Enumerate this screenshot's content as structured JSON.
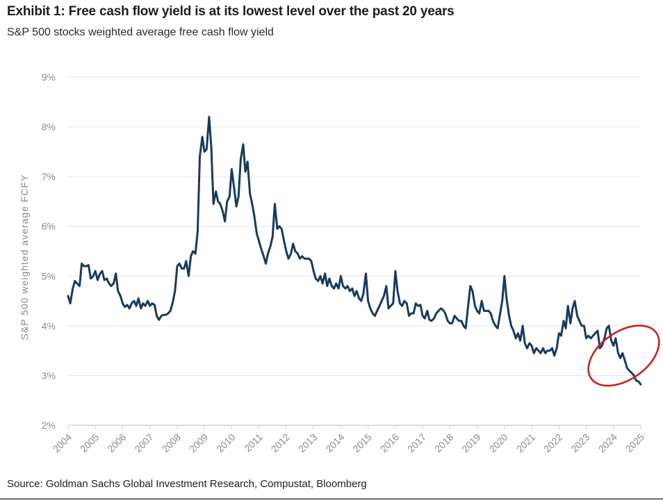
{
  "header": {
    "title": "Exhibit 1: Free cash flow yield is at its lowest level over the past 20 years",
    "subtitle": "S&P 500 stocks weighted average free cash flow yield"
  },
  "footer": {
    "source": "Source: Goldman Sachs Global Investment Research, Compustat, Bloomberg"
  },
  "chart_data": {
    "type": "line",
    "title": "Exhibit 1: Free cash flow yield is at its lowest level over the past 20 years",
    "subtitle": "S&P 500 stocks weighted average free cash flow yield",
    "xlabel": "",
    "ylabel": "S&P 500 weighted average FCFY",
    "xlim": [
      2004,
      2025
    ],
    "ylim": [
      2,
      9
    ],
    "x_ticks": [
      "2004",
      "2005",
      "2006",
      "2007",
      "2008",
      "2009",
      "2010",
      "2011",
      "2012",
      "2013",
      "2014",
      "2015",
      "2016",
      "2017",
      "2018",
      "2019",
      "2020",
      "2021",
      "2022",
      "2023",
      "2024",
      "2025"
    ],
    "y_ticks": [
      "2%",
      "3%",
      "4%",
      "5%",
      "6%",
      "7%",
      "8%",
      "9%"
    ],
    "y_tick_values": [
      2,
      3,
      4,
      5,
      6,
      7,
      8,
      9
    ],
    "grid": "horizontal",
    "line_color": "#173a5e",
    "highlight_color": "#c8201f",
    "highlight": {
      "label": "",
      "x_range": [
        2023.5,
        2025.25
      ],
      "y_range": [
        2.6,
        4.2
      ]
    },
    "series": [
      {
        "points": [
          [
            2004.0,
            4.6
          ],
          [
            2004.08,
            4.45
          ],
          [
            2004.17,
            4.75
          ],
          [
            2004.25,
            4.9
          ],
          [
            2004.33,
            4.85
          ],
          [
            2004.42,
            4.8
          ],
          [
            2004.5,
            5.25
          ],
          [
            2004.58,
            5.2
          ],
          [
            2004.67,
            5.2
          ],
          [
            2004.75,
            5.22
          ],
          [
            2004.83,
            4.95
          ],
          [
            2004.92,
            5.0
          ],
          [
            2005.0,
            5.1
          ],
          [
            2005.08,
            4.92
          ],
          [
            2005.17,
            5.05
          ],
          [
            2005.25,
            5.1
          ],
          [
            2005.33,
            4.92
          ],
          [
            2005.42,
            4.95
          ],
          [
            2005.5,
            4.85
          ],
          [
            2005.58,
            4.8
          ],
          [
            2005.67,
            4.85
          ],
          [
            2005.75,
            5.05
          ],
          [
            2005.83,
            4.7
          ],
          [
            2005.92,
            4.6
          ],
          [
            2006.0,
            4.45
          ],
          [
            2006.08,
            4.38
          ],
          [
            2006.17,
            4.42
          ],
          [
            2006.25,
            4.35
          ],
          [
            2006.33,
            4.45
          ],
          [
            2006.42,
            4.5
          ],
          [
            2006.5,
            4.4
          ],
          [
            2006.58,
            4.55
          ],
          [
            2006.67,
            4.35
          ],
          [
            2006.75,
            4.45
          ],
          [
            2006.83,
            4.4
          ],
          [
            2006.92,
            4.5
          ],
          [
            2007.0,
            4.4
          ],
          [
            2007.08,
            4.45
          ],
          [
            2007.17,
            4.42
          ],
          [
            2007.25,
            4.2
          ],
          [
            2007.33,
            4.12
          ],
          [
            2007.42,
            4.2
          ],
          [
            2007.5,
            4.22
          ],
          [
            2007.58,
            4.22
          ],
          [
            2007.67,
            4.25
          ],
          [
            2007.75,
            4.3
          ],
          [
            2007.83,
            4.45
          ],
          [
            2007.92,
            4.7
          ],
          [
            2008.0,
            5.2
          ],
          [
            2008.08,
            5.25
          ],
          [
            2008.17,
            5.15
          ],
          [
            2008.25,
            5.15
          ],
          [
            2008.33,
            5.3
          ],
          [
            2008.42,
            5.0
          ],
          [
            2008.5,
            5.4
          ],
          [
            2008.58,
            5.5
          ],
          [
            2008.67,
            5.45
          ],
          [
            2008.75,
            5.9
          ],
          [
            2008.83,
            7.4
          ],
          [
            2008.92,
            7.8
          ],
          [
            2009.0,
            7.5
          ],
          [
            2009.08,
            7.55
          ],
          [
            2009.17,
            8.2
          ],
          [
            2009.25,
            7.6
          ],
          [
            2009.33,
            6.45
          ],
          [
            2009.42,
            6.7
          ],
          [
            2009.5,
            6.5
          ],
          [
            2009.58,
            6.45
          ],
          [
            2009.67,
            6.3
          ],
          [
            2009.75,
            6.1
          ],
          [
            2009.83,
            6.5
          ],
          [
            2009.92,
            6.6
          ],
          [
            2010.0,
            7.15
          ],
          [
            2010.08,
            6.8
          ],
          [
            2010.17,
            6.4
          ],
          [
            2010.25,
            6.6
          ],
          [
            2010.33,
            7.35
          ],
          [
            2010.42,
            7.65
          ],
          [
            2010.5,
            7.1
          ],
          [
            2010.58,
            7.3
          ],
          [
            2010.67,
            6.65
          ],
          [
            2010.75,
            6.45
          ],
          [
            2010.83,
            6.2
          ],
          [
            2010.92,
            5.85
          ],
          [
            2011.0,
            5.7
          ],
          [
            2011.08,
            5.55
          ],
          [
            2011.17,
            5.4
          ],
          [
            2011.25,
            5.25
          ],
          [
            2011.33,
            5.45
          ],
          [
            2011.42,
            5.6
          ],
          [
            2011.5,
            5.8
          ],
          [
            2011.58,
            6.45
          ],
          [
            2011.67,
            5.95
          ],
          [
            2011.75,
            6.0
          ],
          [
            2011.83,
            5.95
          ],
          [
            2011.92,
            5.7
          ],
          [
            2012.0,
            5.5
          ],
          [
            2012.08,
            5.35
          ],
          [
            2012.17,
            5.45
          ],
          [
            2012.25,
            5.65
          ],
          [
            2012.33,
            5.5
          ],
          [
            2012.42,
            5.45
          ],
          [
            2012.5,
            5.35
          ],
          [
            2012.58,
            5.4
          ],
          [
            2012.67,
            5.35
          ],
          [
            2012.75,
            5.35
          ],
          [
            2012.83,
            5.35
          ],
          [
            2012.92,
            5.3
          ],
          [
            2013.0,
            5.1
          ],
          [
            2013.08,
            4.95
          ],
          [
            2013.17,
            4.9
          ],
          [
            2013.25,
            5.0
          ],
          [
            2013.33,
            4.85
          ],
          [
            2013.42,
            5.05
          ],
          [
            2013.5,
            4.8
          ],
          [
            2013.58,
            4.95
          ],
          [
            2013.67,
            4.8
          ],
          [
            2013.75,
            4.75
          ],
          [
            2013.83,
            4.85
          ],
          [
            2013.92,
            4.75
          ],
          [
            2014.0,
            5.0
          ],
          [
            2014.08,
            4.8
          ],
          [
            2014.17,
            4.75
          ],
          [
            2014.25,
            4.8
          ],
          [
            2014.33,
            4.7
          ],
          [
            2014.42,
            4.75
          ],
          [
            2014.5,
            4.6
          ],
          [
            2014.58,
            4.7
          ],
          [
            2014.67,
            4.55
          ],
          [
            2014.75,
            4.5
          ],
          [
            2014.83,
            4.65
          ],
          [
            2014.92,
            5.05
          ],
          [
            2015.0,
            4.5
          ],
          [
            2015.08,
            4.35
          ],
          [
            2015.17,
            4.25
          ],
          [
            2015.25,
            4.2
          ],
          [
            2015.33,
            4.3
          ],
          [
            2015.42,
            4.4
          ],
          [
            2015.5,
            4.5
          ],
          [
            2015.58,
            4.6
          ],
          [
            2015.67,
            4.8
          ],
          [
            2015.75,
            4.35
          ],
          [
            2015.83,
            4.4
          ],
          [
            2015.92,
            4.45
          ],
          [
            2016.0,
            5.1
          ],
          [
            2016.08,
            4.7
          ],
          [
            2016.17,
            4.45
          ],
          [
            2016.25,
            4.4
          ],
          [
            2016.33,
            4.5
          ],
          [
            2016.42,
            4.45
          ],
          [
            2016.5,
            4.2
          ],
          [
            2016.58,
            4.25
          ],
          [
            2016.67,
            4.25
          ],
          [
            2016.75,
            4.45
          ],
          [
            2016.83,
            4.4
          ],
          [
            2016.92,
            4.42
          ],
          [
            2017.0,
            4.2
          ],
          [
            2017.08,
            4.15
          ],
          [
            2017.17,
            4.3
          ],
          [
            2017.25,
            4.12
          ],
          [
            2017.33,
            4.1
          ],
          [
            2017.42,
            4.15
          ],
          [
            2017.5,
            4.25
          ],
          [
            2017.58,
            4.3
          ],
          [
            2017.67,
            4.35
          ],
          [
            2017.75,
            4.32
          ],
          [
            2017.83,
            4.25
          ],
          [
            2017.92,
            4.1
          ],
          [
            2018.0,
            4.05
          ],
          [
            2018.08,
            4.05
          ],
          [
            2018.17,
            4.2
          ],
          [
            2018.25,
            4.15
          ],
          [
            2018.33,
            4.1
          ],
          [
            2018.42,
            4.1
          ],
          [
            2018.5,
            4.0
          ],
          [
            2018.58,
            3.95
          ],
          [
            2018.67,
            4.4
          ],
          [
            2018.75,
            4.8
          ],
          [
            2018.83,
            4.7
          ],
          [
            2018.92,
            4.4
          ],
          [
            2019.0,
            4.3
          ],
          [
            2019.08,
            4.25
          ],
          [
            2019.17,
            4.5
          ],
          [
            2019.25,
            4.3
          ],
          [
            2019.33,
            4.3
          ],
          [
            2019.42,
            4.3
          ],
          [
            2019.5,
            4.25
          ],
          [
            2019.58,
            4.1
          ],
          [
            2019.67,
            4.0
          ],
          [
            2019.75,
            3.95
          ],
          [
            2019.83,
            4.2
          ],
          [
            2019.92,
            4.5
          ],
          [
            2020.0,
            5.0
          ],
          [
            2020.08,
            4.55
          ],
          [
            2020.17,
            4.2
          ],
          [
            2020.25,
            4.0
          ],
          [
            2020.33,
            3.9
          ],
          [
            2020.42,
            3.75
          ],
          [
            2020.5,
            3.85
          ],
          [
            2020.58,
            3.7
          ],
          [
            2020.67,
            4.0
          ],
          [
            2020.75,
            3.65
          ],
          [
            2020.83,
            3.55
          ],
          [
            2020.92,
            3.65
          ],
          [
            2021.0,
            3.6
          ],
          [
            2021.08,
            3.45
          ],
          [
            2021.17,
            3.55
          ],
          [
            2021.25,
            3.5
          ],
          [
            2021.33,
            3.45
          ],
          [
            2021.42,
            3.55
          ],
          [
            2021.5,
            3.45
          ],
          [
            2021.58,
            3.5
          ],
          [
            2021.67,
            3.5
          ],
          [
            2021.75,
            3.55
          ],
          [
            2021.83,
            3.4
          ],
          [
            2021.92,
            3.55
          ],
          [
            2022.0,
            3.85
          ],
          [
            2022.08,
            3.8
          ],
          [
            2022.17,
            4.1
          ],
          [
            2022.25,
            3.95
          ],
          [
            2022.33,
            4.4
          ],
          [
            2022.42,
            4.05
          ],
          [
            2022.5,
            4.35
          ],
          [
            2022.58,
            4.5
          ],
          [
            2022.67,
            4.2
          ],
          [
            2022.75,
            4.1
          ],
          [
            2022.83,
            4.0
          ],
          [
            2022.92,
            4.0
          ],
          [
            2023.0,
            3.75
          ],
          [
            2023.08,
            3.8
          ],
          [
            2023.17,
            3.75
          ],
          [
            2023.25,
            3.8
          ],
          [
            2023.33,
            3.85
          ],
          [
            2023.42,
            3.9
          ],
          [
            2023.5,
            3.55
          ],
          [
            2023.58,
            3.6
          ],
          [
            2023.67,
            3.75
          ],
          [
            2023.75,
            3.95
          ],
          [
            2023.83,
            4.0
          ],
          [
            2023.92,
            3.7
          ],
          [
            2024.0,
            3.6
          ],
          [
            2024.08,
            3.75
          ],
          [
            2024.17,
            3.45
          ],
          [
            2024.25,
            3.35
          ],
          [
            2024.33,
            3.45
          ],
          [
            2024.42,
            3.3
          ],
          [
            2024.5,
            3.15
          ],
          [
            2024.58,
            3.1
          ],
          [
            2024.67,
            3.05
          ],
          [
            2024.75,
            3.0
          ],
          [
            2024.83,
            2.9
          ],
          [
            2024.92,
            2.88
          ],
          [
            2025.0,
            2.82
          ]
        ]
      }
    ]
  }
}
